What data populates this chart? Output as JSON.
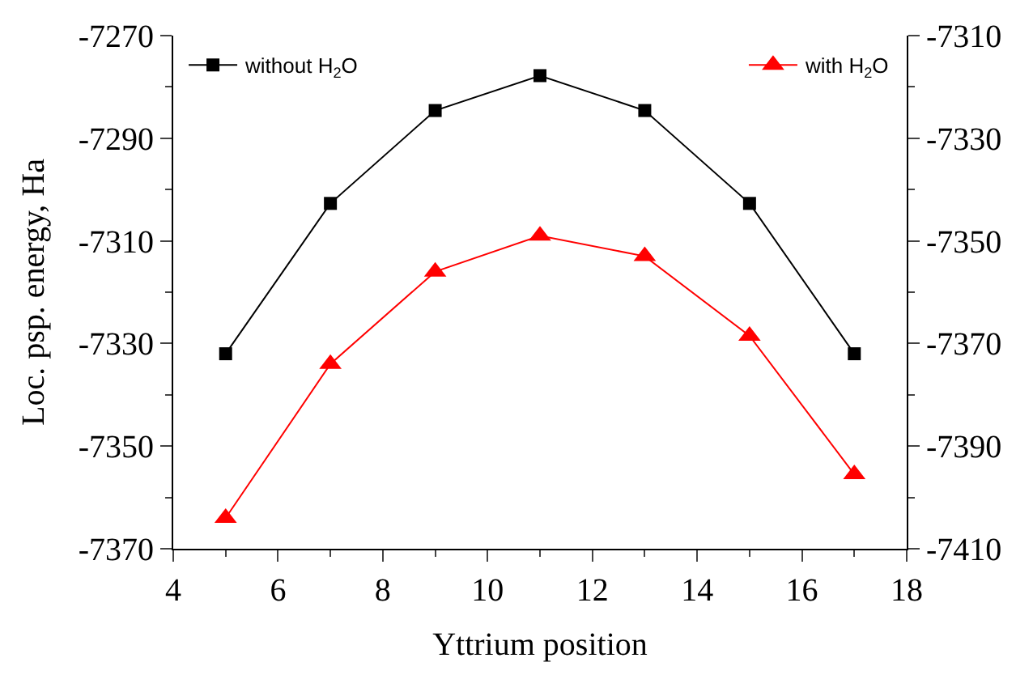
{
  "chart_data": {
    "type": "line",
    "xlabel": "Yttrium position",
    "ylabel": "Loc. psp. energy, Ha",
    "x": [
      5,
      7,
      9,
      11,
      13,
      15,
      17
    ],
    "xlim": [
      4,
      18
    ],
    "xticks": [
      4,
      6,
      8,
      10,
      12,
      14,
      16,
      18
    ],
    "ylim": [
      -7370,
      -7270
    ],
    "yticks": [
      -7370,
      -7350,
      -7330,
      -7310,
      -7290,
      -7270
    ],
    "y2lim": [
      -7410,
      -7310
    ],
    "y2ticks": [
      -7410,
      -7390,
      -7370,
      -7350,
      -7330,
      -7310
    ],
    "legend": "top",
    "line_style": "solid",
    "series": [
      {
        "name": "without H$_{2}$O",
        "color": "#000000",
        "marker": "square",
        "values": [
          -7332,
          -7302.7,
          -7284.6,
          -7277.8,
          -7284.6,
          -7302.7,
          -7332
        ]
      },
      {
        "name": "with H$_{2}$O",
        "color": "#ff0000",
        "marker": "triangle",
        "axis": "y2",
        "values": [
          -7404,
          -7374,
          -7356,
          -7349,
          -7353,
          -7368.5,
          -7395.5
        ]
      }
    ]
  }
}
